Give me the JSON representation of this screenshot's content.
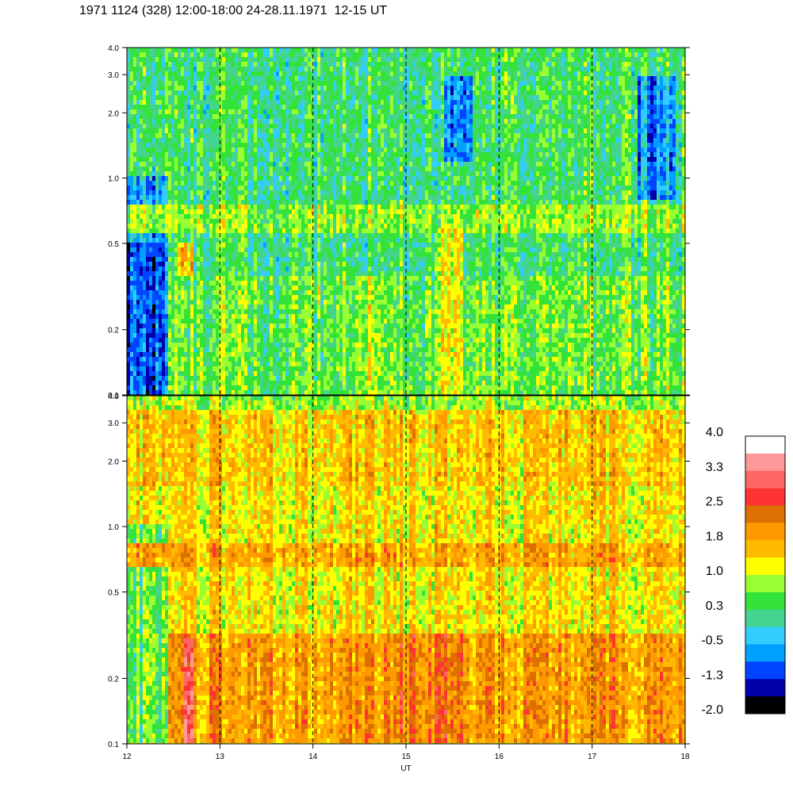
{
  "header": {
    "title": "1971 1124 (328) 12:00-18:00 24-28.11.1971  12-15 UT"
  },
  "chart_data": [
    {
      "type": "heatmap",
      "panel": "upper",
      "xlim": [
        12,
        18
      ],
      "ylim": [
        0.1,
        4.0
      ],
      "yscale": "log",
      "yticks": [
        0.1,
        0.2,
        0.5,
        1.0,
        2.0,
        3.0,
        4.0
      ],
      "yticklabels": [
        "0.1",
        "0.2",
        "0.5",
        "1.0",
        "2.0",
        "3.0",
        "4.0"
      ],
      "hour_markers": [
        13,
        14,
        15,
        16,
        17
      ],
      "background_level": 0.3,
      "features": [
        {
          "x0": 12.0,
          "x1": 12.45,
          "y0": 0.1,
          "y1": 0.5,
          "level": -1.0
        },
        {
          "x0": 12.0,
          "x1": 12.45,
          "y0": 0.5,
          "y1": 1.0,
          "level": -0.5
        },
        {
          "x0": 12.55,
          "x1": 12.7,
          "y0": 0.1,
          "y1": 0.5,
          "level": 1.6
        },
        {
          "x0": 12.0,
          "x1": 18.0,
          "y0": 0.55,
          "y1": 0.75,
          "level": 0.8
        },
        {
          "x0": 12.45,
          "x1": 18.0,
          "y0": 0.1,
          "y1": 0.35,
          "level": 0.6
        },
        {
          "x0": 15.3,
          "x1": 15.6,
          "y0": 0.1,
          "y1": 0.6,
          "level": 1.2
        },
        {
          "x0": 14.5,
          "x1": 14.7,
          "y0": 0.1,
          "y1": 0.35,
          "level": 1.0
        },
        {
          "x0": 15.4,
          "x1": 15.7,
          "y0": 1.2,
          "y1": 3.0,
          "level": -0.7
        },
        {
          "x0": 17.5,
          "x1": 17.9,
          "y0": 0.8,
          "y1": 3.0,
          "level": -0.7
        }
      ]
    },
    {
      "type": "heatmap",
      "panel": "lower",
      "xlabel": "UT",
      "xlim": [
        12,
        18
      ],
      "ylim": [
        0.1,
        4.0
      ],
      "yscale": "log",
      "xticks": [
        12,
        13,
        14,
        15,
        16,
        17,
        18
      ],
      "xticklabels": [
        "12",
        "13",
        "14",
        "15",
        "16",
        "17",
        "18"
      ],
      "yticks": [
        0.1,
        0.2,
        0.5,
        1.0,
        2.0,
        3.0,
        4.0
      ],
      "yticklabels": [
        "0.1",
        "0.2",
        "0.5",
        "1.0",
        "2.0",
        "3.0",
        "4.0"
      ],
      "hour_markers": [
        13,
        14,
        15,
        16,
        17
      ],
      "background_level": 1.3,
      "features": [
        {
          "x0": 12.0,
          "x1": 12.45,
          "y0": 0.1,
          "y1": 1.0,
          "level": 0.5
        },
        {
          "x0": 12.45,
          "x1": 18.0,
          "y0": 0.1,
          "y1": 0.32,
          "level": 1.9
        },
        {
          "x0": 14.9,
          "x1": 15.6,
          "y0": 0.1,
          "y1": 0.32,
          "level": 2.2
        },
        {
          "x0": 12.6,
          "x1": 12.7,
          "y0": 0.1,
          "y1": 0.3,
          "level": 2.8
        },
        {
          "x0": 12.0,
          "x1": 18.0,
          "y0": 0.65,
          "y1": 0.85,
          "level": 1.8
        },
        {
          "x0": 12.0,
          "x1": 18.0,
          "y0": 1.5,
          "y1": 3.5,
          "level": 1.5
        },
        {
          "x0": 12.0,
          "x1": 18.0,
          "y0": 3.5,
          "y1": 4.0,
          "level": 0.8
        }
      ]
    }
  ],
  "colorbar": {
    "range": [
      -2.0,
      4.0
    ],
    "labels": [
      "4.0",
      "3.3",
      "2.5",
      "1.8",
      "1.0",
      "0.3",
      "-0.5",
      "-1.3",
      "-2.0"
    ],
    "colors": [
      "#000000",
      "#0000aa",
      "#0044ff",
      "#00a0ff",
      "#33ccff",
      "#44d48f",
      "#33e33a",
      "#99ff33",
      "#ffff00",
      "#ffbb00",
      "#ff9900",
      "#dd7000",
      "#ff3333",
      "#ff6666",
      "#ff9999",
      "#ffffff"
    ]
  }
}
